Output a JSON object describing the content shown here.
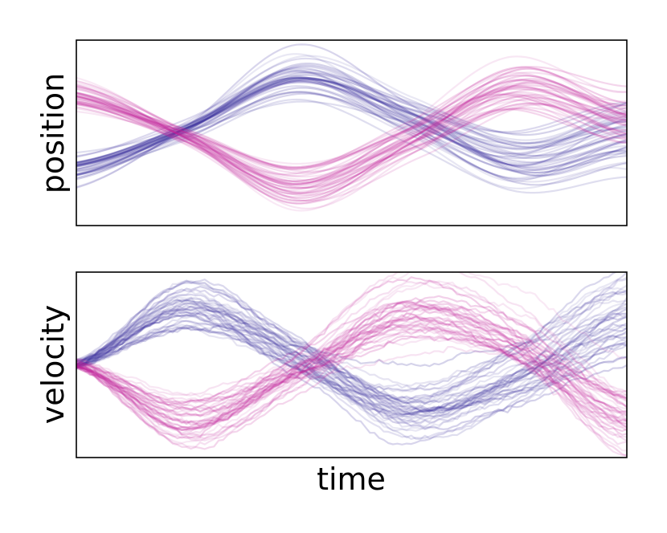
{
  "chart_data": [
    {
      "type": "line",
      "panel": "top",
      "ylabel": "position",
      "xlabel": "",
      "ticks": "none",
      "grid": false,
      "legend": "none",
      "xlim": [
        0,
        1
      ],
      "ylim": [
        -1.2,
        1.2
      ],
      "series": [
        {
          "color": "#3b2f9e",
          "count": 40,
          "mean_x": [
            0,
            0.2,
            0.4,
            0.6,
            0.8,
            1.0
          ],
          "mean_y": [
            -0.45,
            0.05,
            0.7,
            0.2,
            -0.35,
            0.0
          ]
        },
        {
          "color": "#c2249a",
          "count": 40,
          "mean_x": [
            0,
            0.2,
            0.4,
            0.6,
            0.8,
            1.0
          ],
          "mean_y": [
            0.45,
            -0.05,
            -0.65,
            -0.1,
            0.55,
            0.15
          ]
        }
      ]
    },
    {
      "type": "line",
      "panel": "bottom",
      "ylabel": "velocity",
      "xlabel": "time",
      "ticks": "none",
      "grid": false,
      "legend": "none",
      "xlim": [
        0,
        1
      ],
      "ylim": [
        -1.2,
        1.2
      ],
      "series": [
        {
          "color": "#3b2f9e",
          "count": 40,
          "mean_x": [
            0,
            0.2,
            0.4,
            0.6,
            0.8,
            1.0
          ],
          "mean_y": [
            0.0,
            0.75,
            0.1,
            -0.65,
            -0.2,
            0.6
          ]
        },
        {
          "color": "#c2249a",
          "count": 40,
          "mean_x": [
            0,
            0.2,
            0.4,
            0.6,
            0.8,
            1.0
          ],
          "mean_y": [
            0.0,
            -0.7,
            -0.1,
            0.65,
            0.3,
            -0.65
          ]
        }
      ]
    }
  ]
}
